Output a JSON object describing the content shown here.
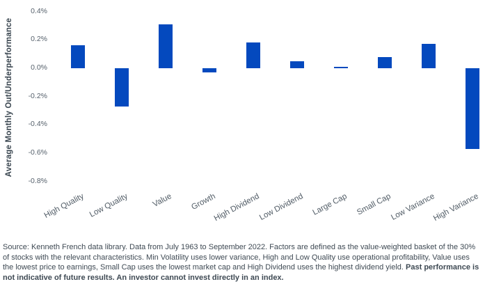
{
  "chart_data": {
    "type": "bar",
    "categories": [
      "High Quality",
      "Low Quality",
      "Value",
      "Growth",
      "High Dividend",
      "Low Dividend",
      "Large Cap",
      "Small Cap",
      "Low Variance",
      "High Variance"
    ],
    "values": [
      0.16,
      -0.27,
      0.31,
      -0.03,
      0.18,
      0.05,
      0.01,
      0.08,
      0.17,
      -0.57
    ],
    "title": "",
    "xlabel": "",
    "ylabel": "Average Monthly Out/Underperformance",
    "yticks": [
      0.4,
      0.2,
      0.0,
      -0.2,
      -0.4,
      -0.6,
      -0.8
    ],
    "ytick_labels": [
      "0.4%",
      "0.2%",
      "0.0%",
      "-0.2%",
      "-0.4%",
      "-0.6%",
      "-0.8%"
    ],
    "ylim": [
      -0.88,
      0.45
    ],
    "grid": false,
    "legend": false,
    "bar_color": "#0449be"
  },
  "footnote": {
    "regular": "Source: Kenneth French data library. Data from July 1963 to September 2022. Factors are defined as the value-weighted basket of the 30% of stocks with the relevant characteristics. Min Volatility uses lower variance, High and Low Quality use operational profitability, Value uses the lowest price to earnings, Small Cap uses the lowest market cap and High Dividend uses the highest dividend yield. ",
    "bold": "Past performance is not indicative of future results. An investor cannot invest directly in an index."
  }
}
